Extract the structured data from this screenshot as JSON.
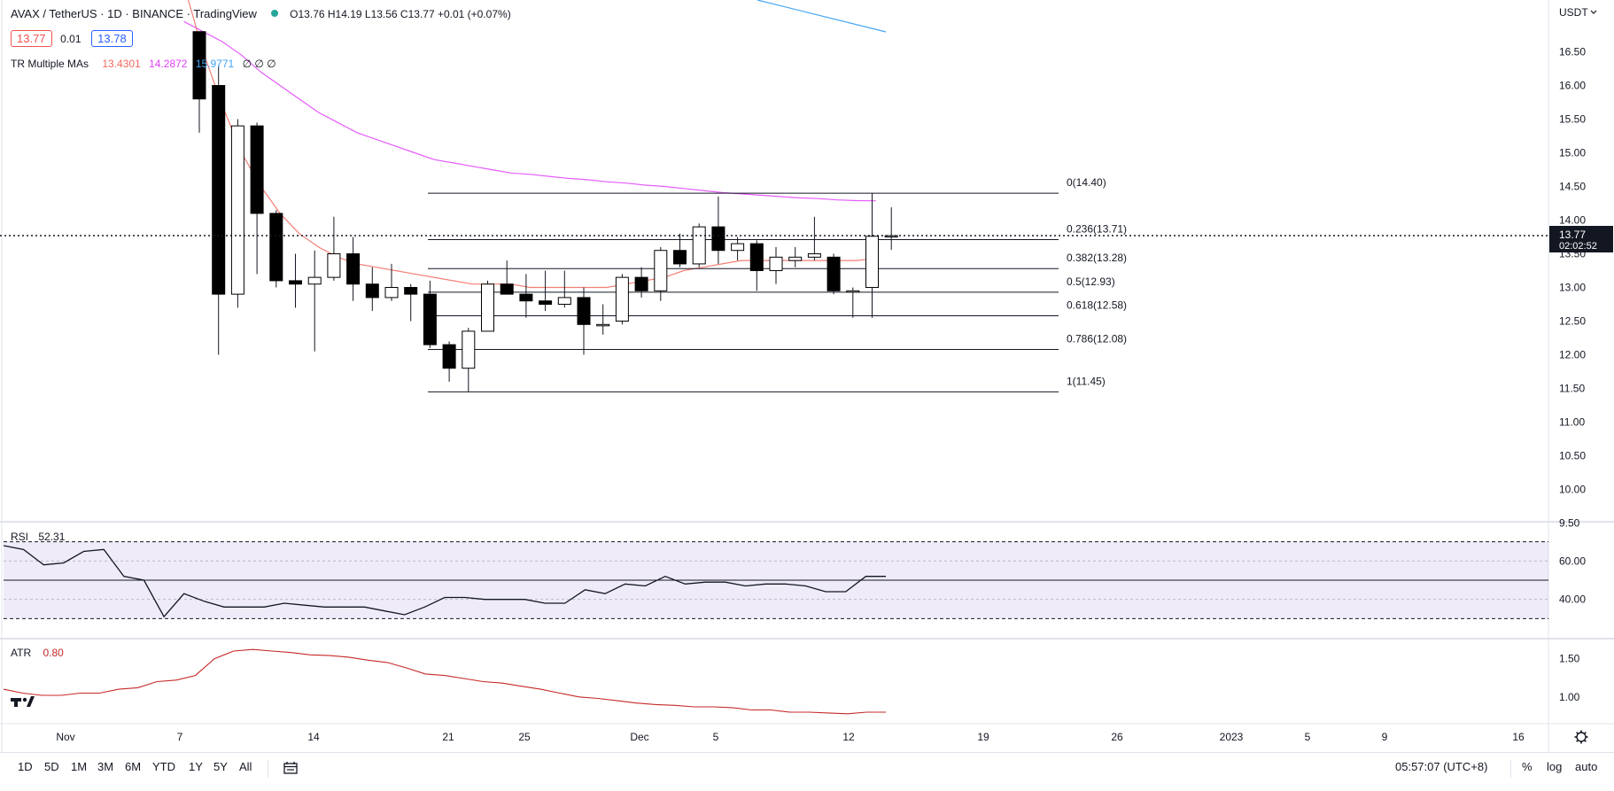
{
  "header": {
    "symbol": "AVAX / TetherUS · 1D · BINANCE · TradingView",
    "ohlc": "O13.76 H14.19 L13.56 C13.77 +0.01 (+0.07%)",
    "bid": "13.77",
    "spread": "0.01",
    "ask": "13.78",
    "indicator_name": "TR Multiple MAs",
    "ma_values": [
      "13.4301",
      "14.2872",
      "15.9771"
    ],
    "ma_trailing": "∅ ∅ ∅"
  },
  "price_axis": {
    "currency": "USDT",
    "ticks": [
      "16.50",
      "16.00",
      "15.50",
      "15.00",
      "14.50",
      "14.00",
      "13.50",
      "13.00",
      "12.50",
      "12.00",
      "11.50",
      "11.00",
      "10.50",
      "10.00",
      "9.50"
    ],
    "last_price": "13.77",
    "countdown": "02:02:52"
  },
  "fib_labels": [
    "0(14.40)",
    "0.236(13.71)",
    "0.382(13.28)",
    "0.5(12.93)",
    "0.618(12.58)",
    "0.786(12.08)",
    "1(11.45)"
  ],
  "rsi": {
    "label": "RSI",
    "value": "52.31",
    "ticks": [
      "60.00",
      "40.00"
    ]
  },
  "atr": {
    "label": "ATR",
    "value": "0.80",
    "ticks": [
      "1.50",
      "1.00"
    ]
  },
  "time_axis": [
    "Nov",
    "7",
    "14",
    "21",
    "25",
    "Dec",
    "5",
    "12",
    "19",
    "26",
    "2023",
    "5",
    "9",
    "16"
  ],
  "bottom_bar": {
    "ranges": [
      "1D",
      "5D",
      "1M",
      "3M",
      "6M",
      "YTD",
      "1Y",
      "5Y",
      "All"
    ],
    "clock": "05:57:07 (UTC+8)",
    "percent": "%",
    "log": "log",
    "auto": "auto"
  },
  "colors": {
    "ma_fast": "#f2685e",
    "ma_mid": "#e040fb",
    "ma_slow": "#42a5f5",
    "rsi_band": "#7e57c2",
    "atr": "#c62828",
    "bid": "#ef5350",
    "ask": "#2962ff"
  },
  "chart_data": {
    "type": "candlestick",
    "y_range": [
      9.3,
      16.8
    ],
    "candles": [
      {
        "date": "2022-11-08",
        "o": 16.8,
        "h": 16.8,
        "l": 15.3,
        "c": 15.8
      },
      {
        "date": "2022-11-09",
        "o": 16.0,
        "h": 16.3,
        "l": 12.0,
        "c": 12.9
      },
      {
        "date": "2022-11-10",
        "o": 12.9,
        "h": 15.5,
        "l": 12.7,
        "c": 15.4
      },
      {
        "date": "2022-11-11",
        "o": 15.4,
        "h": 15.45,
        "l": 13.2,
        "c": 14.1
      },
      {
        "date": "2022-11-12",
        "o": 14.1,
        "h": 14.15,
        "l": 13.0,
        "c": 13.1
      },
      {
        "date": "2022-11-13",
        "o": 13.1,
        "h": 13.5,
        "l": 12.7,
        "c": 13.05
      },
      {
        "date": "2022-11-14",
        "o": 13.05,
        "h": 13.55,
        "l": 12.05,
        "c": 13.15
      },
      {
        "date": "2022-11-15",
        "o": 13.15,
        "h": 14.05,
        "l": 13.1,
        "c": 13.5
      },
      {
        "date": "2022-11-16",
        "o": 13.5,
        "h": 13.75,
        "l": 12.8,
        "c": 13.05
      },
      {
        "date": "2022-11-17",
        "o": 13.05,
        "h": 13.3,
        "l": 12.65,
        "c": 12.85
      },
      {
        "date": "2022-11-18",
        "o": 12.85,
        "h": 13.35,
        "l": 12.8,
        "c": 13.0
      },
      {
        "date": "2022-11-19",
        "o": 13.0,
        "h": 13.05,
        "l": 12.5,
        "c": 12.9
      },
      {
        "date": "2022-11-20",
        "o": 12.9,
        "h": 13.1,
        "l": 12.1,
        "c": 12.15
      },
      {
        "date": "2022-11-21",
        "o": 12.15,
        "h": 12.2,
        "l": 11.6,
        "c": 11.8
      },
      {
        "date": "2022-11-22",
        "o": 11.8,
        "h": 12.4,
        "l": 11.45,
        "c": 12.35
      },
      {
        "date": "2022-11-23",
        "o": 12.35,
        "h": 13.1,
        "l": 12.35,
        "c": 13.05
      },
      {
        "date": "2022-11-24",
        "o": 13.05,
        "h": 13.4,
        "l": 12.9,
        "c": 12.9
      },
      {
        "date": "2022-11-25",
        "o": 12.9,
        "h": 13.2,
        "l": 12.55,
        "c": 12.8
      },
      {
        "date": "2022-11-26",
        "o": 12.8,
        "h": 13.25,
        "l": 12.65,
        "c": 12.75
      },
      {
        "date": "2022-11-27",
        "o": 12.75,
        "h": 13.25,
        "l": 12.7,
        "c": 12.85
      },
      {
        "date": "2022-11-28",
        "o": 12.85,
        "h": 13.0,
        "l": 12.0,
        "c": 12.45
      },
      {
        "date": "2022-11-29",
        "o": 12.45,
        "h": 12.75,
        "l": 12.3,
        "c": 12.45
      },
      {
        "date": "2022-11-30",
        "o": 12.5,
        "h": 13.2,
        "l": 12.45,
        "c": 13.15
      },
      {
        "date": "2022-12-01",
        "o": 13.15,
        "h": 13.3,
        "l": 12.85,
        "c": 12.95
      },
      {
        "date": "2022-12-02",
        "o": 12.95,
        "h": 13.6,
        "l": 12.8,
        "c": 13.55
      },
      {
        "date": "2022-12-03",
        "o": 13.55,
        "h": 13.8,
        "l": 13.3,
        "c": 13.35
      },
      {
        "date": "2022-12-04",
        "o": 13.35,
        "h": 13.95,
        "l": 13.3,
        "c": 13.9
      },
      {
        "date": "2022-12-05",
        "o": 13.9,
        "h": 14.35,
        "l": 13.35,
        "c": 13.55
      },
      {
        "date": "2022-12-06",
        "o": 13.55,
        "h": 13.75,
        "l": 13.4,
        "c": 13.65
      },
      {
        "date": "2022-12-07",
        "o": 13.65,
        "h": 13.7,
        "l": 12.95,
        "c": 13.25
      },
      {
        "date": "2022-12-08",
        "o": 13.25,
        "h": 13.6,
        "l": 13.05,
        "c": 13.45
      },
      {
        "date": "2022-12-09",
        "o": 13.4,
        "h": 13.6,
        "l": 13.3,
        "c": 13.45
      },
      {
        "date": "2022-12-10",
        "o": 13.45,
        "h": 14.05,
        "l": 13.4,
        "c": 13.5
      },
      {
        "date": "2022-12-11",
        "o": 13.45,
        "h": 13.5,
        "l": 12.9,
        "c": 12.95
      },
      {
        "date": "2022-12-12",
        "o": 12.95,
        "h": 13.0,
        "l": 12.55,
        "c": 12.95
      },
      {
        "date": "2022-12-13",
        "o": 13.0,
        "h": 14.4,
        "l": 12.55,
        "c": 13.76
      },
      {
        "date": "2022-12-14",
        "o": 13.76,
        "h": 14.19,
        "l": 13.56,
        "c": 13.77
      }
    ],
    "fib_levels": [
      {
        "ratio": "0",
        "price": 14.4
      },
      {
        "ratio": "0.236",
        "price": 13.71
      },
      {
        "ratio": "0.382",
        "price": 13.28
      },
      {
        "ratio": "0.5",
        "price": 12.93
      },
      {
        "ratio": "0.618",
        "price": 12.58
      },
      {
        "ratio": "0.786",
        "price": 12.08
      },
      {
        "ratio": "1",
        "price": 11.45
      }
    ],
    "ma_fast": [
      17.5,
      16.5,
      15.7,
      15.0,
      14.5,
      14.1,
      13.8,
      13.6,
      13.45,
      13.35,
      13.3,
      13.25,
      13.2,
      13.15,
      13.1,
      13.05,
      13.05,
      13.05,
      13.0,
      13.0,
      13.0,
      13.0,
      13.0,
      13.05,
      13.1,
      13.15,
      13.25,
      13.3,
      13.35,
      13.4,
      13.4,
      13.4,
      13.4,
      13.4,
      13.4,
      13.4,
      13.43
    ],
    "ma_mid": [
      16.95,
      16.8,
      16.65,
      16.45,
      16.2,
      16.0,
      15.8,
      15.6,
      15.45,
      15.3,
      15.2,
      15.1,
      15.0,
      14.9,
      14.85,
      14.8,
      14.75,
      14.7,
      14.68,
      14.65,
      14.62,
      14.6,
      14.57,
      14.55,
      14.52,
      14.5,
      14.47,
      14.44,
      14.41,
      14.39,
      14.37,
      14.35,
      14.33,
      14.32,
      14.3,
      14.29,
      14.2872
    ],
    "ma_slow_points": [
      [
        -1,
        16.85
      ],
      [
        10,
        16.6
      ]
    ],
    "rsi": {
      "y_range": [
        20,
        80
      ],
      "upper": 70,
      "lower": 30,
      "mid": 50,
      "values": [
        68,
        66,
        58,
        59,
        65,
        66,
        52,
        50,
        31,
        43,
        39,
        36,
        36,
        36,
        38,
        37,
        36,
        36,
        36,
        34,
        32,
        36,
        41,
        41,
        40,
        40,
        40,
        38,
        38,
        45,
        43,
        48,
        47,
        52,
        48,
        49,
        49,
        47,
        48,
        48,
        47,
        44,
        44,
        52,
        52
      ]
    },
    "atr": {
      "y_range": [
        0.65,
        1.75
      ],
      "values": [
        1.1,
        1.05,
        1.02,
        1.02,
        1.05,
        1.05,
        1.1,
        1.12,
        1.2,
        1.22,
        1.28,
        1.5,
        1.6,
        1.62,
        1.6,
        1.58,
        1.55,
        1.54,
        1.52,
        1.48,
        1.45,
        1.38,
        1.3,
        1.28,
        1.24,
        1.2,
        1.18,
        1.14,
        1.1,
        1.05,
        1.0,
        0.98,
        0.95,
        0.92,
        0.9,
        0.89,
        0.87,
        0.87,
        0.86,
        0.83,
        0.83,
        0.8,
        0.8,
        0.79,
        0.78,
        0.8,
        0.8
      ]
    }
  }
}
